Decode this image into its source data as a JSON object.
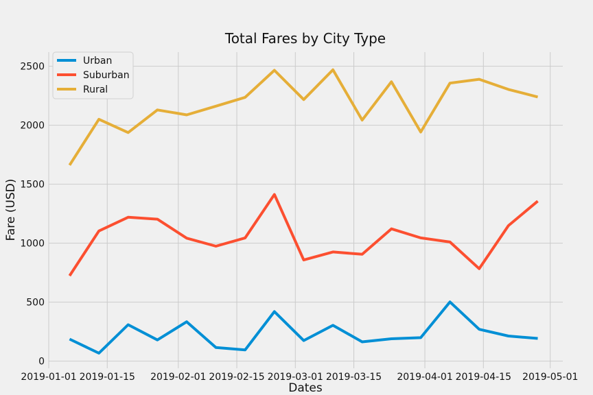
{
  "chart_data": {
    "type": "line",
    "title": "Total Fares by City Type",
    "xlabel": "Dates",
    "ylabel": "Fare (USD)",
    "x": [
      "2019-01-06",
      "2019-01-13",
      "2019-01-20",
      "2019-01-27",
      "2019-02-03",
      "2019-02-10",
      "2019-02-17",
      "2019-02-24",
      "2019-03-03",
      "2019-03-10",
      "2019-03-17",
      "2019-03-24",
      "2019-03-31",
      "2019-04-07",
      "2019-04-14",
      "2019-04-21",
      "2019-04-28"
    ],
    "xlim": [
      "2019-01-01",
      "2019-05-04"
    ],
    "ylim": [
      -60,
      2620
    ],
    "x_ticks": [
      "2019-01-01",
      "2019-01-15",
      "2019-02-01",
      "2019-02-15",
      "2019-03-01",
      "2019-03-15",
      "2019-04-01",
      "2019-04-15",
      "2019-05-01"
    ],
    "y_ticks": [
      0,
      500,
      1000,
      1500,
      2000,
      2500
    ],
    "grid": true,
    "legend_position": "top-left",
    "series": [
      {
        "name": "Urban",
        "color": "#008fd5",
        "values": [
          187,
          68,
          309,
          180,
          334,
          116,
          96,
          420,
          175,
          304,
          164,
          190,
          199,
          502,
          270,
          213,
          193
        ]
      },
      {
        "name": "Suburban",
        "color": "#fc4f30",
        "values": [
          724,
          1104,
          1220,
          1204,
          1043,
          975,
          1045,
          1413,
          858,
          926,
          906,
          1122,
          1045,
          1010,
          784,
          1149,
          1357
        ]
      },
      {
        "name": "Rural",
        "color": "#e5ae38",
        "values": [
          1662,
          2051,
          1938,
          2130,
          2088,
          2162,
          2237,
          2466,
          2218,
          2470,
          2044,
          2369,
          1943,
          2357,
          2390,
          2304,
          2240
        ]
      }
    ]
  }
}
